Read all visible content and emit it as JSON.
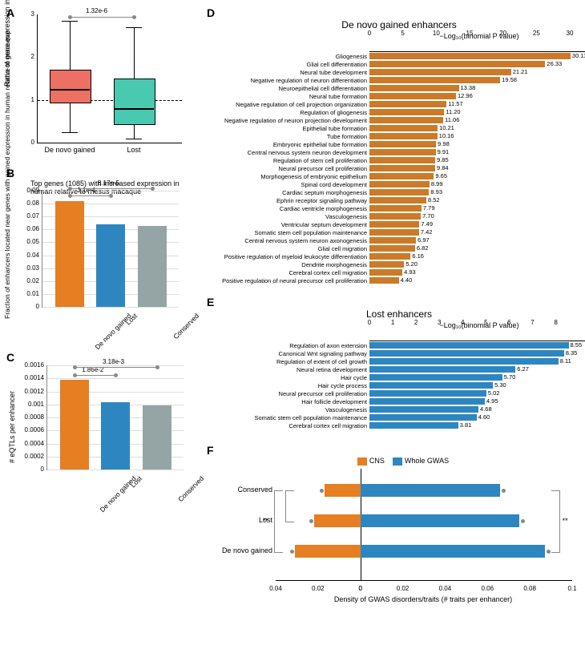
{
  "colors": {
    "denovo": "#e67e22",
    "lost": "#2e86c1",
    "conserved": "#95a5a6",
    "boxA_denovo": "#ec7063",
    "boxA_lost": "#48c9b0",
    "grid": "#dddddd",
    "axis": "#000000"
  },
  "panelA": {
    "label": "A",
    "ylab": "Ratio of gene expression in human relative to in rhesus macaque",
    "ylim": [
      0,
      3
    ],
    "yticks": [
      0,
      1,
      2,
      3
    ],
    "categories": [
      "De novo gained",
      "Lost"
    ],
    "boxes": [
      {
        "min": 0.25,
        "q1": 0.95,
        "med": 1.25,
        "q3": 1.7,
        "max": 2.85,
        "color": "#ec7063"
      },
      {
        "min": 0.1,
        "q1": 0.45,
        "med": 0.8,
        "q3": 1.5,
        "max": 2.7,
        "color": "#48c9b0"
      }
    ],
    "sig": "1.32e-6"
  },
  "panelB": {
    "label": "B",
    "title": "Top genes (1085) with increased expression in human relative to rhesus macaque",
    "ylab": "Fraction of enhancers located near genes with gained expression in human relative to macaque",
    "ylim": [
      0,
      0.09
    ],
    "yticks": [
      0,
      0.01,
      0.02,
      0.03,
      0.04,
      0.05,
      0.06,
      0.07,
      0.08,
      0.09
    ],
    "bars": [
      {
        "label": "De novo gained",
        "value": 0.082,
        "color": "#e67e22"
      },
      {
        "label": "Lost",
        "value": 0.064,
        "color": "#2e86c1"
      },
      {
        "label": "Conserved",
        "value": 0.063,
        "color": "#95a5a6"
      }
    ],
    "sig": [
      {
        "from": 0,
        "to": 1,
        "text": "3.1e-4",
        "y": 0.086
      },
      {
        "from": 0,
        "to": 2,
        "text": "8.17e-5",
        "y": 0.092
      }
    ]
  },
  "panelC": {
    "label": "C",
    "ylab": "# eQTLs per enhancer",
    "ylim": [
      0,
      0.0016
    ],
    "yticks": [
      0,
      0.0002,
      0.0004,
      0.0006,
      0.0008,
      0.001,
      0.0012,
      0.0014,
      0.0016
    ],
    "bars": [
      {
        "label": "De novo gained",
        "value": 0.00138,
        "color": "#e67e22"
      },
      {
        "label": "Lost",
        "value": 0.00103,
        "color": "#2e86c1"
      },
      {
        "label": "Conserved",
        "value": 0.00098,
        "color": "#95a5a6"
      }
    ],
    "sig": [
      {
        "from": 0,
        "to": 1,
        "text": "1.86e-2",
        "y": 0.00145
      },
      {
        "from": 0,
        "to": 2,
        "text": "3.18e-3",
        "y": 0.00158
      }
    ]
  },
  "panelD": {
    "label": "D",
    "title": "De novo gained enhancers",
    "axis_title": "−Log₁₀(binomial P value)",
    "xmax": 30,
    "xticks": [
      0,
      5,
      10,
      15,
      20,
      25,
      30
    ],
    "color": "#cc7a29",
    "rows": [
      {
        "l": "Gliogenesis",
        "v": 30.11
      },
      {
        "l": "Glial cell differentiation",
        "v": 26.33
      },
      {
        "l": "Neural tube development",
        "v": 21.21
      },
      {
        "l": "Negative regulation of neuron differentiation",
        "v": 19.58
      },
      {
        "l": "Neuroepithelial cell differentiation",
        "v": 13.38
      },
      {
        "l": "Neural tube formation",
        "v": 12.96
      },
      {
        "l": "Negative regulation of cell projection organization",
        "v": 11.57
      },
      {
        "l": "Regulation of gliogenesis",
        "v": 11.2
      },
      {
        "l": "Negative regulation of neuron projection development",
        "v": 11.06
      },
      {
        "l": "Epithelial tube formation",
        "v": 10.21
      },
      {
        "l": "Tube formation",
        "v": 10.16
      },
      {
        "l": "Embryonic epithelial tube formation",
        "v": 9.98
      },
      {
        "l": "Central nervous system neuron development",
        "v": 9.91
      },
      {
        "l": "Regulation of stem cell proliferation",
        "v": 9.85
      },
      {
        "l": "Neural precursor cell proliferation",
        "v": 9.84
      },
      {
        "l": "Morphogenesis of embryonic epithelium",
        "v": 9.65
      },
      {
        "l": "Spinal cord development",
        "v": 8.99
      },
      {
        "l": "Cardiac septum morphogenesis",
        "v": 8.93
      },
      {
        "l": "Ephrin receptor signaling pathway",
        "v": 8.52
      },
      {
        "l": "Cardiac ventricle morphogenesis",
        "v": 7.79
      },
      {
        "l": "Vasculogenesis",
        "v": 7.7
      },
      {
        "l": "Ventricular septum development",
        "v": 7.49
      },
      {
        "l": "Somatic stem cell population maintenance",
        "v": 7.42
      },
      {
        "l": "Central nervous system neuron axonogenesis",
        "v": 6.97
      },
      {
        "l": "Glial cell migration",
        "v": 6.82
      },
      {
        "l": "Positive regulation of myeloid leukocyte differentiation",
        "v": 6.16
      },
      {
        "l": "Dendrite morphogenesis",
        "v": 5.2
      },
      {
        "l": "Cerebral cortex cell migration",
        "v": 4.93
      },
      {
        "l": "Positive regulation of neural precursor cell proliferation",
        "v": 4.4
      }
    ]
  },
  "panelE": {
    "label": "E",
    "title": "Lost enhancers",
    "axis_title": "−Log₁₀(binomial P value)",
    "xmax": 8.6,
    "xticks": [
      0,
      1,
      2,
      3,
      4,
      5,
      6,
      7,
      8
    ],
    "color": "#2e86c1",
    "rows": [
      {
        "l": "Regulation of axon extension",
        "v": 8.55
      },
      {
        "l": "Canonical Wnt signaling pathway",
        "v": 8.35
      },
      {
        "l": "Regulation of extent of cell growth",
        "v": 8.11
      },
      {
        "l": "Neural retina development",
        "v": 6.27
      },
      {
        "l": "Hair cycle",
        "v": 5.7
      },
      {
        "l": "Hair cycle process",
        "v": 5.3
      },
      {
        "l": "Neural precursor cell proliferation",
        "v": 5.02
      },
      {
        "l": "Hair follicle development",
        "v": 4.95
      },
      {
        "l": "Vasculogenesis",
        "v": 4.68
      },
      {
        "l": "Somatic stem cell population maintenance",
        "v": 4.6
      },
      {
        "l": "Cerebral cortex cell migration",
        "v": 3.81
      }
    ]
  },
  "panelF": {
    "label": "F",
    "legend": [
      {
        "l": "CNS",
        "c": "#e67e22"
      },
      {
        "l": "Whole GWAS",
        "c": "#2e86c1"
      }
    ],
    "xlab": "Density of GWAS disorders/traits (# traits per enhancer)",
    "xmin": -0.04,
    "xmax": 0.1,
    "xticks_left": [
      0.04,
      0.02,
      0
    ],
    "xticks_right": [
      0,
      0.02,
      0.04,
      0.06,
      0.08,
      0.1
    ],
    "rows": [
      {
        "l": "Conserved",
        "cns": 0.017,
        "gwas": 0.066
      },
      {
        "l": "Lost",
        "cns": 0.022,
        "gwas": 0.075
      },
      {
        "l": "De novo gained",
        "cns": 0.031,
        "gwas": 0.087
      }
    ],
    "sig_left": "**",
    "sig_right": "**"
  }
}
